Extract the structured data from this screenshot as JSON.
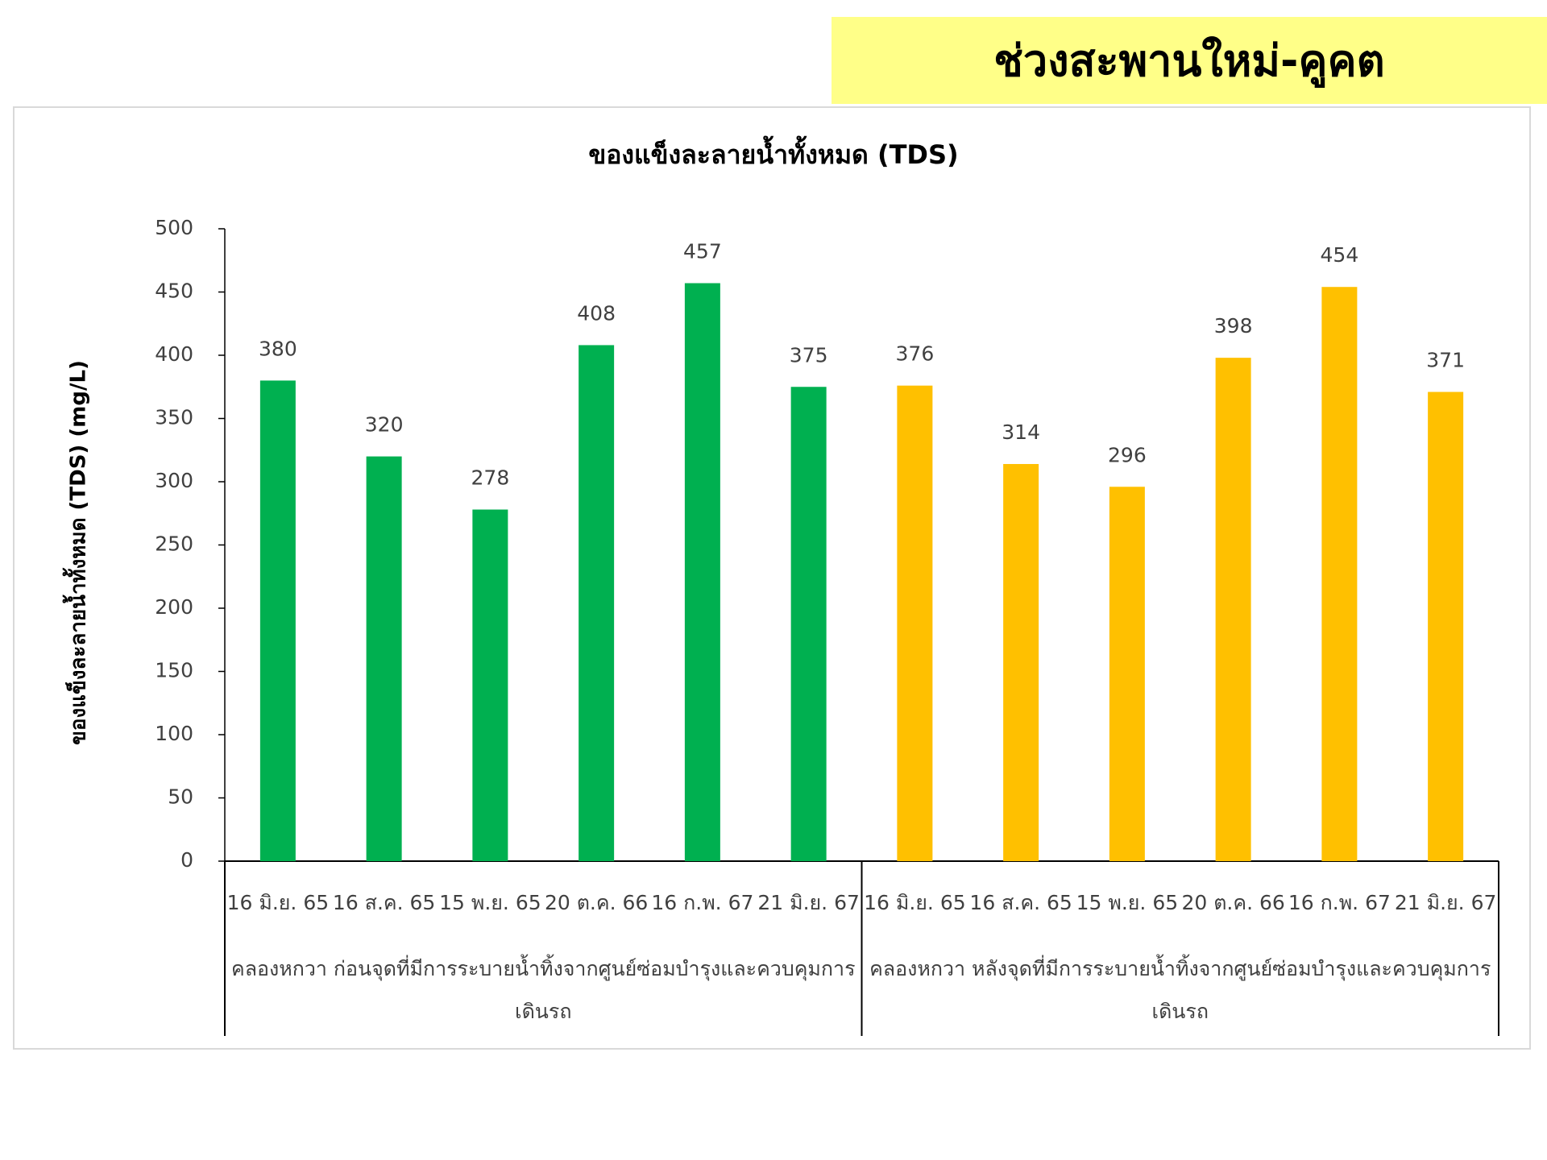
{
  "header": {
    "title": "ช่วงสะพานใหม่-คูคต"
  },
  "chart_data": {
    "type": "bar",
    "title": "ของแข็งละลายน้ำทั้งหมด (TDS)",
    "y_label": "ของแข็งละลายน้ำทั้งหมด (TDS) (mg/L)",
    "groups": [
      {
        "label": "คลองหกวา ก่อนจุดที่มีการระบายน้ำทิ้งจากศูนย์ซ่อมบำรุงและควบคุมการเดินรถ",
        "color": "#00b050",
        "categories": [
          "16 มิ.ย. 65",
          "16 ส.ค. 65",
          "15 พ.ย. 65",
          "20 ต.ค. 66",
          "16 ก.พ. 67",
          "21 มิ.ย. 67"
        ],
        "values": [
          380,
          320,
          278,
          408,
          457,
          375
        ]
      },
      {
        "label": "คลองหกวา หลังจุดที่มีการระบายน้ำทิ้งจากศูนย์ซ่อมบำรุงและควบคุมการเดินรถ",
        "color": "#ffc000",
        "categories": [
          "16 มิ.ย. 65",
          "16 ส.ค. 65",
          "15 พ.ย. 65",
          "20 ต.ค. 66",
          "16 ก.พ. 67",
          "21 มิ.ย. 67"
        ],
        "values": [
          376,
          314,
          296,
          398,
          454,
          371
        ]
      }
    ],
    "ylim": [
      0,
      500
    ],
    "yticks": [
      0,
      50,
      100,
      150,
      200,
      250,
      300,
      350,
      400,
      450,
      500
    ]
  }
}
